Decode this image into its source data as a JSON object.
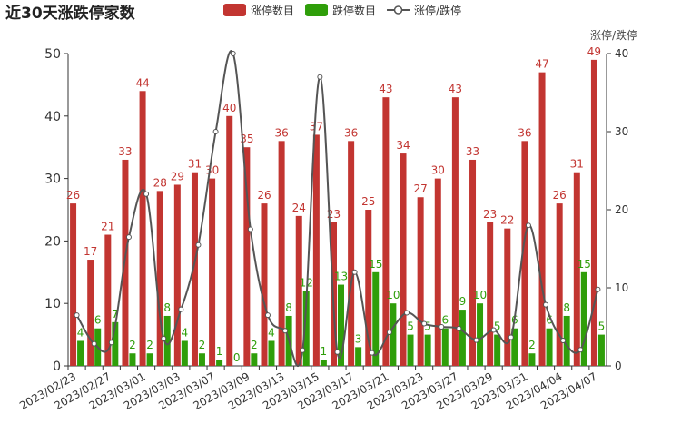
{
  "chart_data": {
    "type": "bar",
    "title": "近30天涨跌停家数",
    "y2_label": "涨停/跌停",
    "categories": [
      "2023/02/23",
      null,
      "2023/02/27",
      null,
      "2023/03/01",
      null,
      "2023/03/03",
      null,
      "2023/03/07",
      null,
      "2023/03/09",
      null,
      "2023/03/13",
      null,
      "2023/03/15",
      null,
      "2023/03/17",
      null,
      "2023/03/21",
      null,
      "2023/03/23",
      null,
      "2023/03/27",
      null,
      "2023/03/29",
      null,
      "2023/03/31",
      null,
      "2023/04/04",
      null,
      "2023/04/07"
    ],
    "series": [
      {
        "name": "涨停数目",
        "color": "#c23531",
        "values": [
          26,
          17,
          21,
          33,
          44,
          28,
          29,
          31,
          30,
          40,
          35,
          26,
          36,
          24,
          37,
          23,
          36,
          25,
          43,
          34,
          27,
          30,
          43,
          33,
          23,
          22,
          36,
          47,
          26,
          31,
          49
        ]
      },
      {
        "name": "跌停数目",
        "color": "#2f9e0a",
        "values": [
          4,
          6,
          7,
          2,
          2,
          8,
          4,
          2,
          1,
          0,
          2,
          4,
          8,
          12,
          1,
          13,
          3,
          15,
          10,
          5,
          5,
          6,
          9,
          10,
          5,
          6,
          2,
          6,
          8,
          15,
          5
        ]
      },
      {
        "name": "涨停/跌停",
        "color": "#555555",
        "axis": "y2",
        "type": "line",
        "values": [
          6.5,
          2.83,
          3,
          16.5,
          22,
          3.5,
          7.25,
          15.5,
          30,
          40,
          17.5,
          6.5,
          4.5,
          2,
          37,
          1.77,
          12,
          1.67,
          4.3,
          6.8,
          5.4,
          5,
          4.78,
          3.3,
          4.6,
          3.67,
          18,
          7.83,
          3.25,
          2.07,
          9.8
        ]
      }
    ],
    "ylim": [
      0,
      50
    ],
    "yticks": [
      0,
      10,
      20,
      30,
      40,
      50
    ],
    "y2lim": [
      0,
      40
    ],
    "y2ticks": [
      0,
      10,
      20,
      30,
      40
    ],
    "grid": false,
    "legend": "top"
  }
}
